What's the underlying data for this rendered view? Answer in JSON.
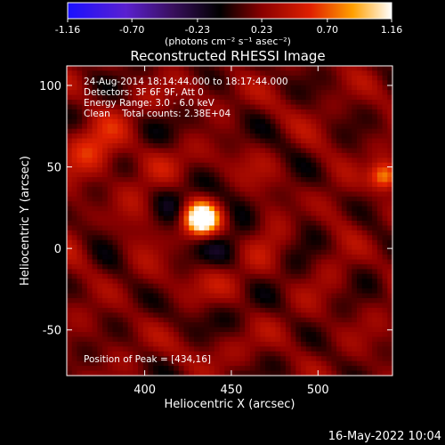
{
  "colorbar": {
    "ticks": [
      "-1.16",
      "-0.70",
      "-0.23",
      "0.23",
      "0.70",
      "1.16"
    ],
    "values": [
      -1.16,
      -0.7,
      -0.23,
      0.23,
      0.7,
      1.16
    ],
    "range": [
      -1.16,
      1.16
    ],
    "unit_label": "(photons cm⁻² s⁻¹ asec⁻²)"
  },
  "chart_data": {
    "type": "heatmap",
    "title": "Reconstructed RHESSI Image",
    "xlabel": "Heliocentric X (arcsec)",
    "ylabel": "Heliocentric Y (arcsec)",
    "xlim": [
      355,
      543
    ],
    "ylim": [
      -78,
      112
    ],
    "xticks": [
      400,
      450,
      500
    ],
    "yticks": [
      -50,
      0,
      50,
      100
    ],
    "info_lines": [
      "24-Aug-2014 18:14:44.000 to 18:17:44.000",
      "Detectors: 3F 6F 9F, Att 0",
      "Energy Range: 3.0 - 6.0 keV",
      "Clean    Total counts: 2.38E+04"
    ],
    "peak_label": "Position of Peak = [434,16]",
    "peak": {
      "x": 434,
      "y": 16
    },
    "sources": [
      {
        "x": 432,
        "y": 18,
        "sigma": 7,
        "amplitude": 1.16
      },
      {
        "x": 538,
        "y": 44,
        "sigma": 6,
        "amplitude": 0.72
      },
      {
        "x": 374,
        "y": 60,
        "sigma": 12,
        "amplitude": 0.38
      }
    ],
    "colormap": "blue-purple-black-red-yellow-white"
  },
  "footer": {
    "date": "16-May-2022 10:04"
  }
}
